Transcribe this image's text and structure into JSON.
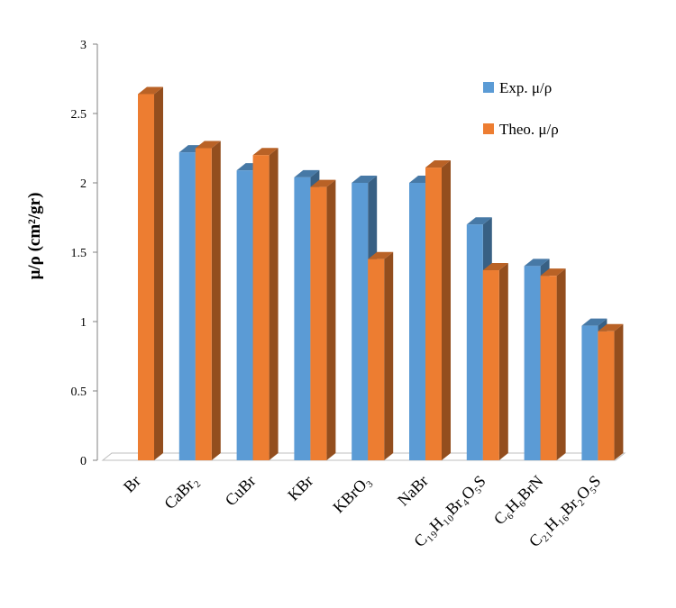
{
  "chart_data": {
    "type": "bar",
    "style": "3d-clustered-column",
    "categories": [
      "Br",
      "CaBr₂",
      "CuBr",
      "KBr",
      "KBrO₃",
      "NaBr",
      "C₁₉H₁₀Br₄O₅S",
      "C₆H₆BrN",
      "C₂₁H₁₆Br₂O₅S"
    ],
    "series": [
      {
        "name": "Exp. μ/ρ",
        "color": "#5B9BD5",
        "values": [
          null,
          2.22,
          2.09,
          2.04,
          2.0,
          2.0,
          1.7,
          1.4,
          0.97
        ]
      },
      {
        "name": "Theo. μ/ρ",
        "color": "#ED7D31",
        "values": [
          2.64,
          2.25,
          2.2,
          1.97,
          1.45,
          2.11,
          1.37,
          1.33,
          0.93
        ]
      }
    ],
    "ylabel": "μ/ρ (cm²/gr)",
    "ylim": [
      0,
      3
    ],
    "yticks": [
      "0",
      "0.5",
      "1",
      "1.5",
      "2",
      "2.5",
      "3"
    ],
    "grid": false,
    "legend_position": "right"
  }
}
